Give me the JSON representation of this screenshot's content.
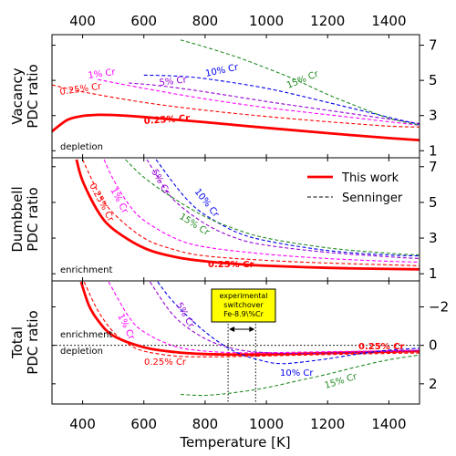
{
  "chart_data": {
    "type": "line",
    "xlabel": "Temperature [K]",
    "x_ticks": [
      400,
      600,
      800,
      1000,
      1200,
      1400
    ],
    "xlim": [
      300,
      1500
    ],
    "legend": {
      "placement": "top-right of middle panel",
      "entries": [
        {
          "label": "This work",
          "style": "solid"
        },
        {
          "label": "Senninger",
          "style": "dashed"
        }
      ]
    },
    "colors": {
      "red": "#ff0000",
      "magenta": "#ff00ff",
      "purple": "#9400d3",
      "blue": "#0000ee",
      "green": "#228b22",
      "black": "#000000",
      "box": "#ffff00"
    },
    "panels": [
      {
        "id": "vacancy",
        "ylabel": [
          "Vacancy",
          "PDC ratio"
        ],
        "ylim": [
          0.6,
          7.6
        ],
        "yticks": [
          1,
          3,
          5,
          7
        ],
        "y_inverted": false,
        "texts": {
          "region_label": "depletion"
        },
        "series": [
          {
            "id": "v_this",
            "name": "0.25% Cr",
            "color": "red",
            "style": "solid",
            "bold": true,
            "x": [
              300,
              350,
              400,
              450,
              500,
              600,
              800,
              1000,
              1200,
              1400,
              1500
            ],
            "y": [
              2.1,
              2.75,
              2.98,
              3.04,
              3.03,
              2.92,
              2.62,
              2.3,
              2.0,
              1.72,
              1.6
            ]
          },
          {
            "id": "v_s025",
            "name": "0.25% Cr",
            "color": "red",
            "style": "dashed",
            "x": [
              300,
              400,
              600,
              800,
              1000,
              1200,
              1400,
              1500
            ],
            "y": [
              4.75,
              4.35,
              3.75,
              3.3,
              2.95,
              2.65,
              2.4,
              2.35
            ]
          },
          {
            "id": "v_s1",
            "name": "1% Cr",
            "color": "magenta",
            "style": "dashed",
            "x": [
              450,
              600,
              800,
              1000,
              1200,
              1400,
              1500
            ],
            "y": [
              5.05,
              4.55,
              3.95,
              3.45,
              3.05,
              2.65,
              2.45
            ]
          },
          {
            "id": "v_s5",
            "name": "5% Cr",
            "color": "purple",
            "style": "dashed",
            "x": [
              550,
              650,
              800,
              1000,
              1200,
              1400,
              1500
            ],
            "y": [
              4.85,
              4.7,
              4.35,
              3.8,
              3.3,
              2.8,
              2.55
            ]
          },
          {
            "id": "v_s10",
            "name": "10% Cr",
            "color": "blue",
            "style": "dashed",
            "x": [
              600,
              700,
              800,
              1000,
              1200,
              1400,
              1500
            ],
            "y": [
              5.3,
              5.25,
              5.1,
              4.55,
              3.75,
              2.9,
              2.5
            ]
          },
          {
            "id": "v_s15",
            "name": "15% Cr",
            "color": "green",
            "style": "dashed",
            "x": [
              720,
              800,
              900,
              1000,
              1100,
              1200,
              1300,
              1400,
              1500
            ],
            "y": [
              7.3,
              6.9,
              6.35,
              5.7,
              5.0,
              4.2,
              3.5,
              2.85,
              2.45
            ]
          }
        ],
        "labels": [
          {
            "text": "1% Cr",
            "color": "magenta"
          },
          {
            "text": "0.25% Cr",
            "color": "red"
          },
          {
            "text": "5% Cr",
            "color": "purple"
          },
          {
            "text": "10% Cr",
            "color": "blue"
          },
          {
            "text": "15% Cr",
            "color": "green"
          },
          {
            "text": "0.25% Cr",
            "color": "red",
            "bold": true
          }
        ]
      },
      {
        "id": "dumbbell",
        "ylabel": [
          "Dumbbell",
          "PDC ratio"
        ],
        "ylim": [
          0.6,
          7.5
        ],
        "yticks": [
          1,
          3,
          5,
          7
        ],
        "y_inverted": false,
        "texts": {
          "region_label": "enrichment"
        },
        "series": [
          {
            "id": "d_this",
            "name": "0.25% Cr",
            "color": "red",
            "style": "solid",
            "bold": true,
            "x": [
              380,
              400,
              450,
              500,
              600,
              700,
              800,
              900,
              1000,
              1200,
              1400,
              1500
            ],
            "y": [
              7.4,
              6.2,
              4.5,
              3.5,
              2.45,
              1.95,
              1.7,
              1.55,
              1.45,
              1.33,
              1.27,
              1.25
            ]
          },
          {
            "id": "d_s025",
            "name": "0.25% Cr",
            "color": "red",
            "style": "dashed",
            "x": [
              400,
              450,
              500,
              600,
              700,
              800,
              1000,
              1200,
              1400,
              1500
            ],
            "y": [
              7.4,
              5.6,
              4.4,
              3.0,
              2.35,
              2.0,
              1.75,
              1.6,
              1.5,
              1.45
            ]
          },
          {
            "id": "d_s1",
            "name": "1% Cr",
            "color": "magenta",
            "style": "dashed",
            "x": [
              470,
              500,
              550,
              600,
              700,
              800,
              1000,
              1200,
              1400,
              1500
            ],
            "y": [
              7.4,
              6.3,
              4.9,
              4.0,
              3.0,
              2.5,
              2.1,
              1.85,
              1.7,
              1.65
            ]
          },
          {
            "id": "d_s5",
            "name": "5% Cr",
            "color": "purple",
            "style": "dashed",
            "x": [
              610,
              650,
              700,
              800,
              900,
              1000,
              1200,
              1400,
              1500
            ],
            "y": [
              7.4,
              6.3,
              5.1,
              3.8,
              3.0,
              2.6,
              2.2,
              1.95,
              1.85
            ]
          },
          {
            "id": "d_s10",
            "name": "10% Cr",
            "color": "blue",
            "style": "dashed",
            "x": [
              640,
              700,
              750,
              800,
              900,
              1000,
              1200,
              1400,
              1500
            ],
            "y": [
              7.4,
              6.0,
              5.0,
              4.3,
              3.35,
              2.85,
              2.3,
              2.05,
              2.0
            ]
          },
          {
            "id": "d_s15",
            "name": "15% Cr",
            "color": "green",
            "style": "dashed",
            "x": [
              540,
              600,
              700,
              800,
              900,
              1000,
              1200,
              1400,
              1500
            ],
            "y": [
              7.4,
              6.4,
              5.2,
              4.2,
              3.5,
              3.0,
              2.45,
              2.15,
              2.05
            ]
          }
        ],
        "labels": [
          {
            "text": "0.25% Cr",
            "color": "red"
          },
          {
            "text": "1% Cr",
            "color": "magenta"
          },
          {
            "text": "5% Cr",
            "color": "purple"
          },
          {
            "text": "10% Cr",
            "color": "blue"
          },
          {
            "text": "15% Cr",
            "color": "green"
          },
          {
            "text": "0.25% Cr",
            "color": "red",
            "bold": true
          }
        ]
      },
      {
        "id": "total",
        "ylabel": [
          "Total",
          "PDC ratio"
        ],
        "ylim": [
          3.05,
          -3.35
        ],
        "yticks": [
          -2,
          0,
          2
        ],
        "ytick_labels": [
          "−2",
          "0",
          "2"
        ],
        "y_inverted": true,
        "texts": {
          "upper_label": "enrichment",
          "lower_label": "depletion"
        },
        "series": [
          {
            "id": "t_this",
            "name": "0.25% Cr",
            "color": "red",
            "style": "solid",
            "bold": true,
            "x": [
              395,
              420,
              450,
              500,
              600,
              700,
              800,
              900,
              1000,
              1100,
              1200,
              1300,
              1400,
              1500
            ],
            "y": [
              -3.3,
              -2.1,
              -1.3,
              -0.5,
              0.1,
              0.35,
              0.45,
              0.48,
              0.47,
              0.44,
              0.4,
              0.36,
              0.33,
              0.3
            ]
          },
          {
            "id": "t_s025",
            "name": "0.25% Cr",
            "color": "red",
            "style": "dashed",
            "x": [
              405,
              450,
              500,
              550,
              600,
              700,
              800,
              900,
              1000,
              1200,
              1400,
              1500
            ],
            "y": [
              -3.3,
              -1.8,
              -0.7,
              -0.05,
              0.3,
              0.55,
              0.6,
              0.58,
              0.55,
              0.48,
              0.42,
              0.4
            ]
          },
          {
            "id": "t_s1",
            "name": "1% Cr",
            "color": "magenta",
            "style": "dashed",
            "x": [
              485,
              550,
              600,
              700,
              800,
              900,
              1000,
              1200,
              1400,
              1500
            ],
            "y": [
              -3.3,
              -1.5,
              -0.7,
              0.05,
              0.3,
              0.38,
              0.38,
              0.33,
              0.28,
              0.25
            ]
          },
          {
            "id": "t_s5",
            "name": "5% Cr",
            "color": "purple",
            "style": "dashed",
            "x": [
              620,
              700,
              800,
              900,
              1000,
              1100,
              1200,
              1400,
              1500
            ],
            "y": [
              -3.3,
              -1.5,
              -0.35,
              0.2,
              0.38,
              0.42,
              0.4,
              0.32,
              0.28
            ]
          },
          {
            "id": "t_s10",
            "name": "10% Cr",
            "color": "blue",
            "style": "dashed",
            "x": [
              645,
              700,
              800,
              900,
              1000,
              1050,
              1100,
              1200,
              1300,
              1400,
              1500
            ],
            "y": [
              -3.3,
              -2.2,
              -0.7,
              0.35,
              0.85,
              0.95,
              0.9,
              0.7,
              0.45,
              0.25,
              0.15
            ]
          },
          {
            "id": "t_s15",
            "name": "15% Cr",
            "color": "green",
            "style": "dashed",
            "x": [
              720,
              800,
              900,
              1000,
              1100,
              1200,
              1300,
              1400,
              1500
            ],
            "y": [
              2.55,
              2.6,
              2.45,
              2.2,
              1.85,
              1.5,
              1.1,
              0.75,
              0.5
            ]
          }
        ],
        "labels": [
          {
            "text": "1% Cr",
            "color": "magenta"
          },
          {
            "text": "5% Cr",
            "color": "purple"
          },
          {
            "text": "0.25% Cr",
            "color": "red",
            "bold": true
          },
          {
            "text": "0.25% Cr",
            "color": "red"
          },
          {
            "text": "10% Cr",
            "color": "blue"
          },
          {
            "text": "15% Cr",
            "color": "green"
          }
        ],
        "annotation": {
          "box_lines": [
            "experimental",
            "switchover",
            "Fe-8.9\\%Cr"
          ],
          "switchover_range_K": [
            875,
            965
          ],
          "zero_line": 0
        }
      }
    ]
  }
}
